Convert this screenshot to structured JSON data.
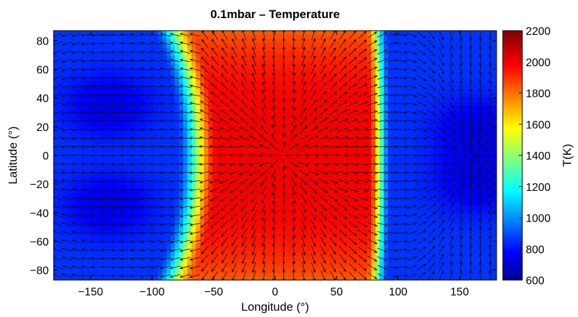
{
  "chart_data": {
    "type": "heatmap",
    "title": "0.1mbar – Temperature",
    "xlabel": "Longitude (°)",
    "ylabel": "Latitude (°)",
    "xlim": [
      -180,
      180
    ],
    "ylim": [
      -87,
      87
    ],
    "x_ticks": [
      -150,
      -100,
      -50,
      0,
      50,
      100,
      150
    ],
    "x_tick_labels": [
      "−150",
      "−100",
      "−50",
      "0",
      "50",
      "100",
      "150"
    ],
    "y_ticks": [
      80,
      60,
      40,
      20,
      0,
      -20,
      -40,
      -60,
      -80
    ],
    "y_tick_labels": [
      "80",
      "60",
      "40",
      "20",
      "0",
      "−20",
      "−40",
      "−60",
      "−80"
    ],
    "colorbar": {
      "label": "T(K)",
      "range": [
        600,
        2200
      ],
      "ticks": [
        600,
        800,
        1000,
        1200,
        1400,
        1600,
        1800,
        2000,
        2200
      ],
      "tick_labels": [
        "600",
        "800",
        "1000",
        "1200",
        "1400",
        "1600",
        "1800",
        "2000",
        "2200"
      ],
      "colormap": "jet"
    },
    "field": {
      "nightside_temperature": 880,
      "nightside_vortex_temperature": 750,
      "dayside_peak_temperature": 2020,
      "hot_region_west_edge_lon": -58,
      "hot_region_east_edge_lon": 90,
      "hot_region_west_edge_lon_pole": -78,
      "hot_region_east_edge_lon_pole": 88,
      "cold_vortices": [
        {
          "lon": -135,
          "lat": 35
        },
        {
          "lon": -135,
          "lat": -35
        },
        {
          "lon": 165,
          "lat": 18
        },
        {
          "lon": 165,
          "lat": -18
        }
      ]
    },
    "wind_vectors": {
      "description": "arrows show flow diverging from the dayside (substellar point lon 0) toward the nightside, converging near lon 160, lat 0",
      "divergence_point": [
        5,
        0
      ],
      "convergence_point": [
        160,
        0
      ]
    }
  }
}
